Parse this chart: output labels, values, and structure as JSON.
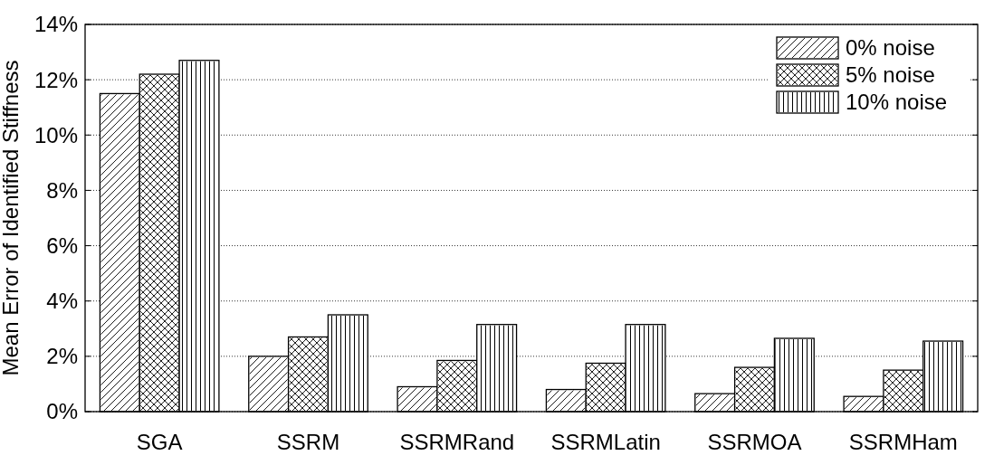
{
  "chart_data": {
    "type": "bar",
    "ylabel": "Mean Error of Identified Stiffness",
    "categories": [
      "SGA",
      "SSRM",
      "SSRMRand",
      "SSRMLatin",
      "SSRMOA",
      "SSRMHam"
    ],
    "series": [
      {
        "name": "0% noise",
        "color": "#ffffff",
        "values": [
          11.5,
          2.0,
          0.9,
          0.8,
          0.65,
          0.55
        ]
      },
      {
        "name": "5% noise",
        "color": "#ffffff",
        "values": [
          12.2,
          2.7,
          1.85,
          1.75,
          1.6,
          1.5
        ]
      },
      {
        "name": "10% noise",
        "color": "#ffffff",
        "values": [
          12.7,
          3.5,
          3.15,
          3.15,
          2.65,
          2.55
        ]
      }
    ],
    "ylim": [
      0,
      14
    ],
    "yticks": [
      {
        "value": 0,
        "label": "0%"
      },
      {
        "value": 2,
        "label": "2%"
      },
      {
        "value": 4,
        "label": "4%"
      },
      {
        "value": 6,
        "label": "6%"
      },
      {
        "value": 8,
        "label": "8%"
      },
      {
        "value": 10,
        "label": "10%"
      },
      {
        "value": 12,
        "label": "12%"
      },
      {
        "value": 14,
        "label": "14%"
      }
    ],
    "grid": "y",
    "legend": "top right"
  }
}
